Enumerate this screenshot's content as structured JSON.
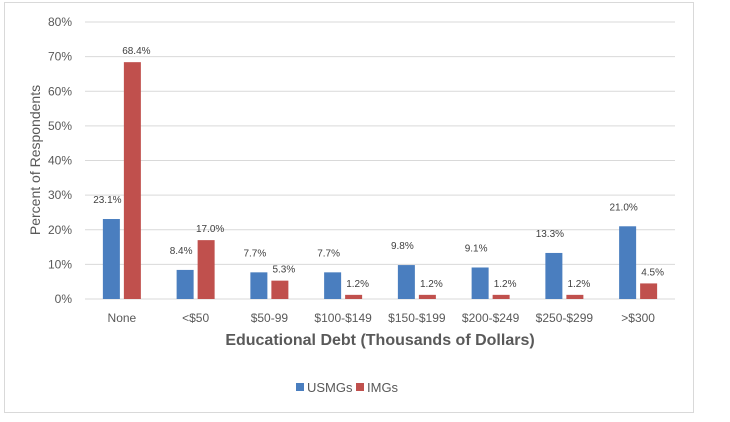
{
  "chart_data": {
    "type": "bar",
    "title": "",
    "xlabel": "Educational Debt (Thousands of Dollars)",
    "ylabel": "Percent of Respondents",
    "ylim": [
      0,
      80
    ],
    "yticks": [
      "0%",
      "10%",
      "20%",
      "30%",
      "40%",
      "50%",
      "60%",
      "70%",
      "80%"
    ],
    "grid": true,
    "legend_position": "bottom",
    "categories": [
      "None",
      "<$50",
      "$50-99",
      "$100-$149",
      "$150-$199",
      "$200-$249",
      "$250-$299",
      ">$300"
    ],
    "series": [
      {
        "name": "USMGs",
        "color": "#4a7ebf",
        "values": [
          23.1,
          8.4,
          7.7,
          7.7,
          9.8,
          9.1,
          13.3,
          21.0
        ],
        "labels": [
          "23.1%",
          "8.4%",
          "7.7%",
          "7.7%",
          "9.8%",
          "9.1%",
          "13.3%",
          "21.0%"
        ]
      },
      {
        "name": "IMGs",
        "color": "#c0504d",
        "values": [
          68.4,
          17.0,
          5.3,
          1.2,
          1.2,
          1.2,
          1.2,
          4.5
        ],
        "labels": [
          "68.4%",
          "17.0%",
          "5.3%",
          "1.2%",
          "1.2%",
          "1.2%",
          "1.2%",
          "4.5%"
        ]
      }
    ]
  }
}
